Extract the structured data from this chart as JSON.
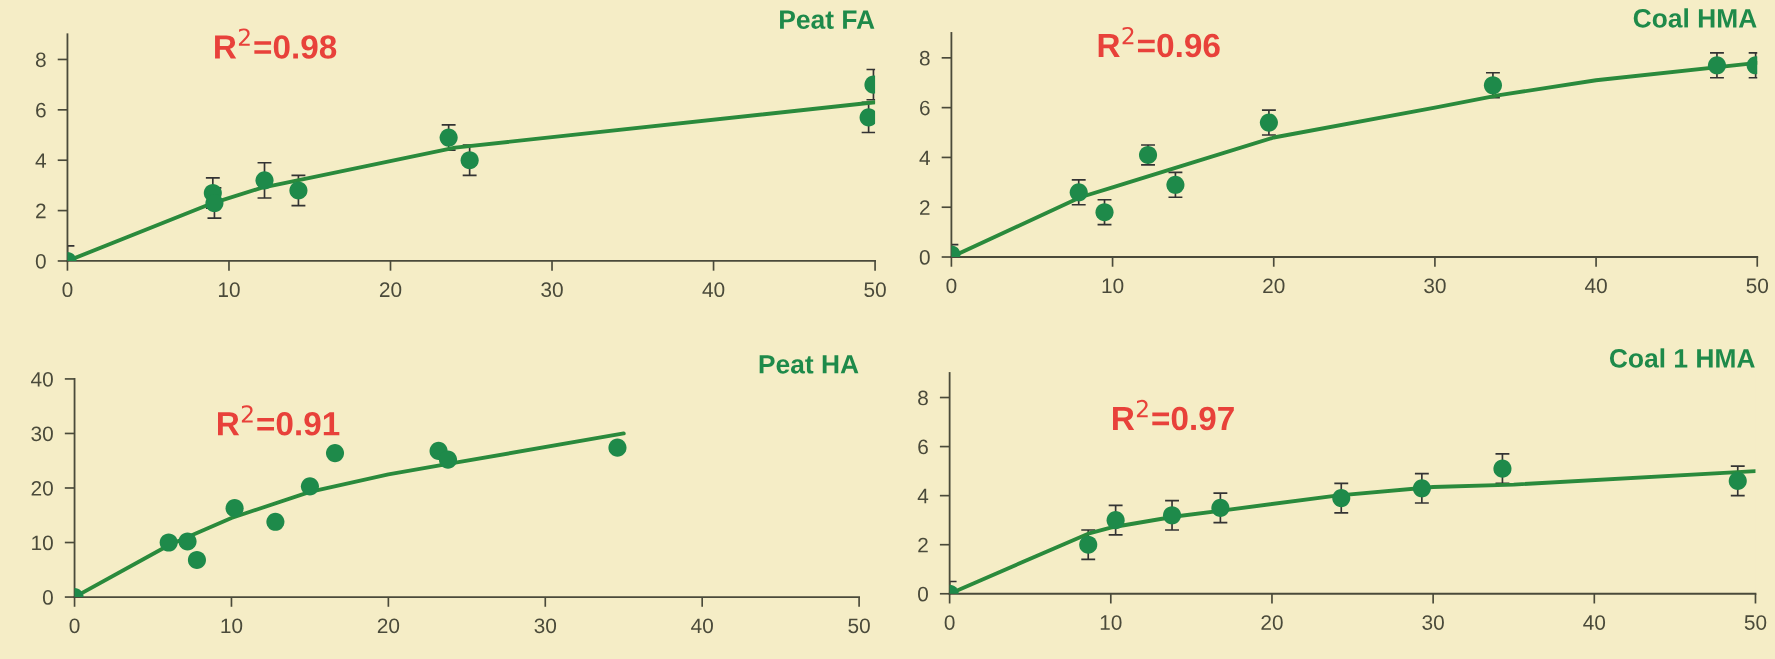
{
  "chart_data": [
    {
      "type": "scatter",
      "title": "Peat FA",
      "annotations": [
        "R$^{2}$=0.98"
      ],
      "xlim": [
        0,
        50
      ],
      "ylim": [
        0,
        9
      ],
      "xticks": [
        0,
        10,
        20,
        30,
        40,
        50
      ],
      "yticks": [
        0,
        2,
        4,
        6,
        8
      ],
      "grid": false,
      "legend": false,
      "series": [
        {
          "marker": "circle",
          "color": "#1e8a4a",
          "x": [
            0,
            9,
            9.1,
            12.2,
            14.3,
            23.6,
            24.9,
            49.6,
            49.9
          ],
          "values": [
            0,
            2.7,
            2.3,
            3.2,
            2.8,
            4.9,
            4.0,
            5.7,
            7.0
          ],
          "errors": [
            0.6,
            0.6,
            0.6,
            0.7,
            0.6,
            0.5,
            0.6,
            0.6,
            0.6
          ]
        },
        {
          "type": "line",
          "color": "#2a8a3c",
          "x": [
            0,
            9,
            12,
            15,
            24,
            50
          ],
          "values": [
            0,
            2.3,
            2.9,
            3.3,
            4.5,
            6.3
          ]
        }
      ]
    },
    {
      "type": "scatter",
      "title": "Coal HMA",
      "annotations": [
        "R$^{2}$=0.96"
      ],
      "xlim": [
        0,
        50
      ],
      "ylim": [
        0,
        9
      ],
      "xticks": [
        0,
        10,
        20,
        30,
        40,
        50
      ],
      "yticks": [
        0,
        2,
        4,
        6,
        8
      ],
      "grid": false,
      "legend": false,
      "series": [
        {
          "marker": "circle",
          "color": "#1e8a4a",
          "x": [
            0,
            7.9,
            9.5,
            12.2,
            13.9,
            19.7,
            33.6,
            47.5,
            49.9
          ],
          "values": [
            0.1,
            2.6,
            1.8,
            4.1,
            2.9,
            5.4,
            6.9,
            7.7,
            7.7
          ],
          "errors": [
            0.4,
            0.5,
            0.5,
            0.4,
            0.5,
            0.5,
            0.5,
            0.5,
            0.5
          ]
        },
        {
          "type": "line",
          "color": "#2a8a3c",
          "x": [
            0,
            8,
            10,
            15,
            20,
            30,
            34,
            40,
            50
          ],
          "values": [
            0,
            2.4,
            2.8,
            3.8,
            4.8,
            6.0,
            6.5,
            7.1,
            7.8
          ]
        }
      ]
    },
    {
      "type": "scatter",
      "title": "Peat HA",
      "annotations": [
        "R$^{2}$=0.91"
      ],
      "xlim": [
        0,
        50
      ],
      "ylim": [
        0,
        40
      ],
      "xticks": [
        0,
        10,
        20,
        30,
        40,
        50
      ],
      "yticks": [
        0,
        10,
        20,
        30,
        40
      ],
      "grid": false,
      "legend": false,
      "series": [
        {
          "marker": "circle",
          "color": "#1e8a4a",
          "x": [
            0,
            6,
            7.2,
            7.8,
            10.2,
            12.8,
            15,
            16.6,
            23.2,
            23.8,
            34.6
          ],
          "values": [
            0,
            10,
            10.2,
            6.8,
            16.3,
            13.8,
            20.3,
            26.4,
            26.8,
            25.2,
            27.4
          ]
        },
        {
          "type": "line",
          "color": "#2a8a3c",
          "x": [
            0,
            6,
            10,
            15,
            20,
            24,
            35
          ],
          "values": [
            0,
            9.5,
            14.5,
            19.3,
            22.5,
            24.5,
            30
          ]
        }
      ]
    },
    {
      "type": "scatter",
      "title": "Coal 1 HMA",
      "annotations": [
        "R$^{2}$=0.97"
      ],
      "xlim": [
        0,
        50
      ],
      "ylim": [
        0,
        9
      ],
      "xticks": [
        0,
        10,
        20,
        30,
        40,
        50
      ],
      "yticks": [
        0,
        2,
        4,
        6,
        8
      ],
      "grid": false,
      "legend": false,
      "series": [
        {
          "marker": "circle",
          "color": "#1e8a4a",
          "x": [
            0,
            8.6,
            10.3,
            13.8,
            16.8,
            24.3,
            29.3,
            34.3,
            48.9
          ],
          "values": [
            0,
            2.0,
            3.0,
            3.2,
            3.5,
            3.9,
            4.3,
            5.1,
            4.6
          ],
          "errors": [
            0.5,
            0.6,
            0.6,
            0.6,
            0.6,
            0.6,
            0.6,
            0.6,
            0.6
          ]
        },
        {
          "type": "line",
          "color": "#2a8a3c",
          "x": [
            0,
            8.6,
            10,
            14,
            17,
            24,
            30,
            35,
            50
          ],
          "values": [
            0,
            2.45,
            2.7,
            3.15,
            3.4,
            4.0,
            4.35,
            4.45,
            5.0
          ]
        }
      ]
    }
  ]
}
